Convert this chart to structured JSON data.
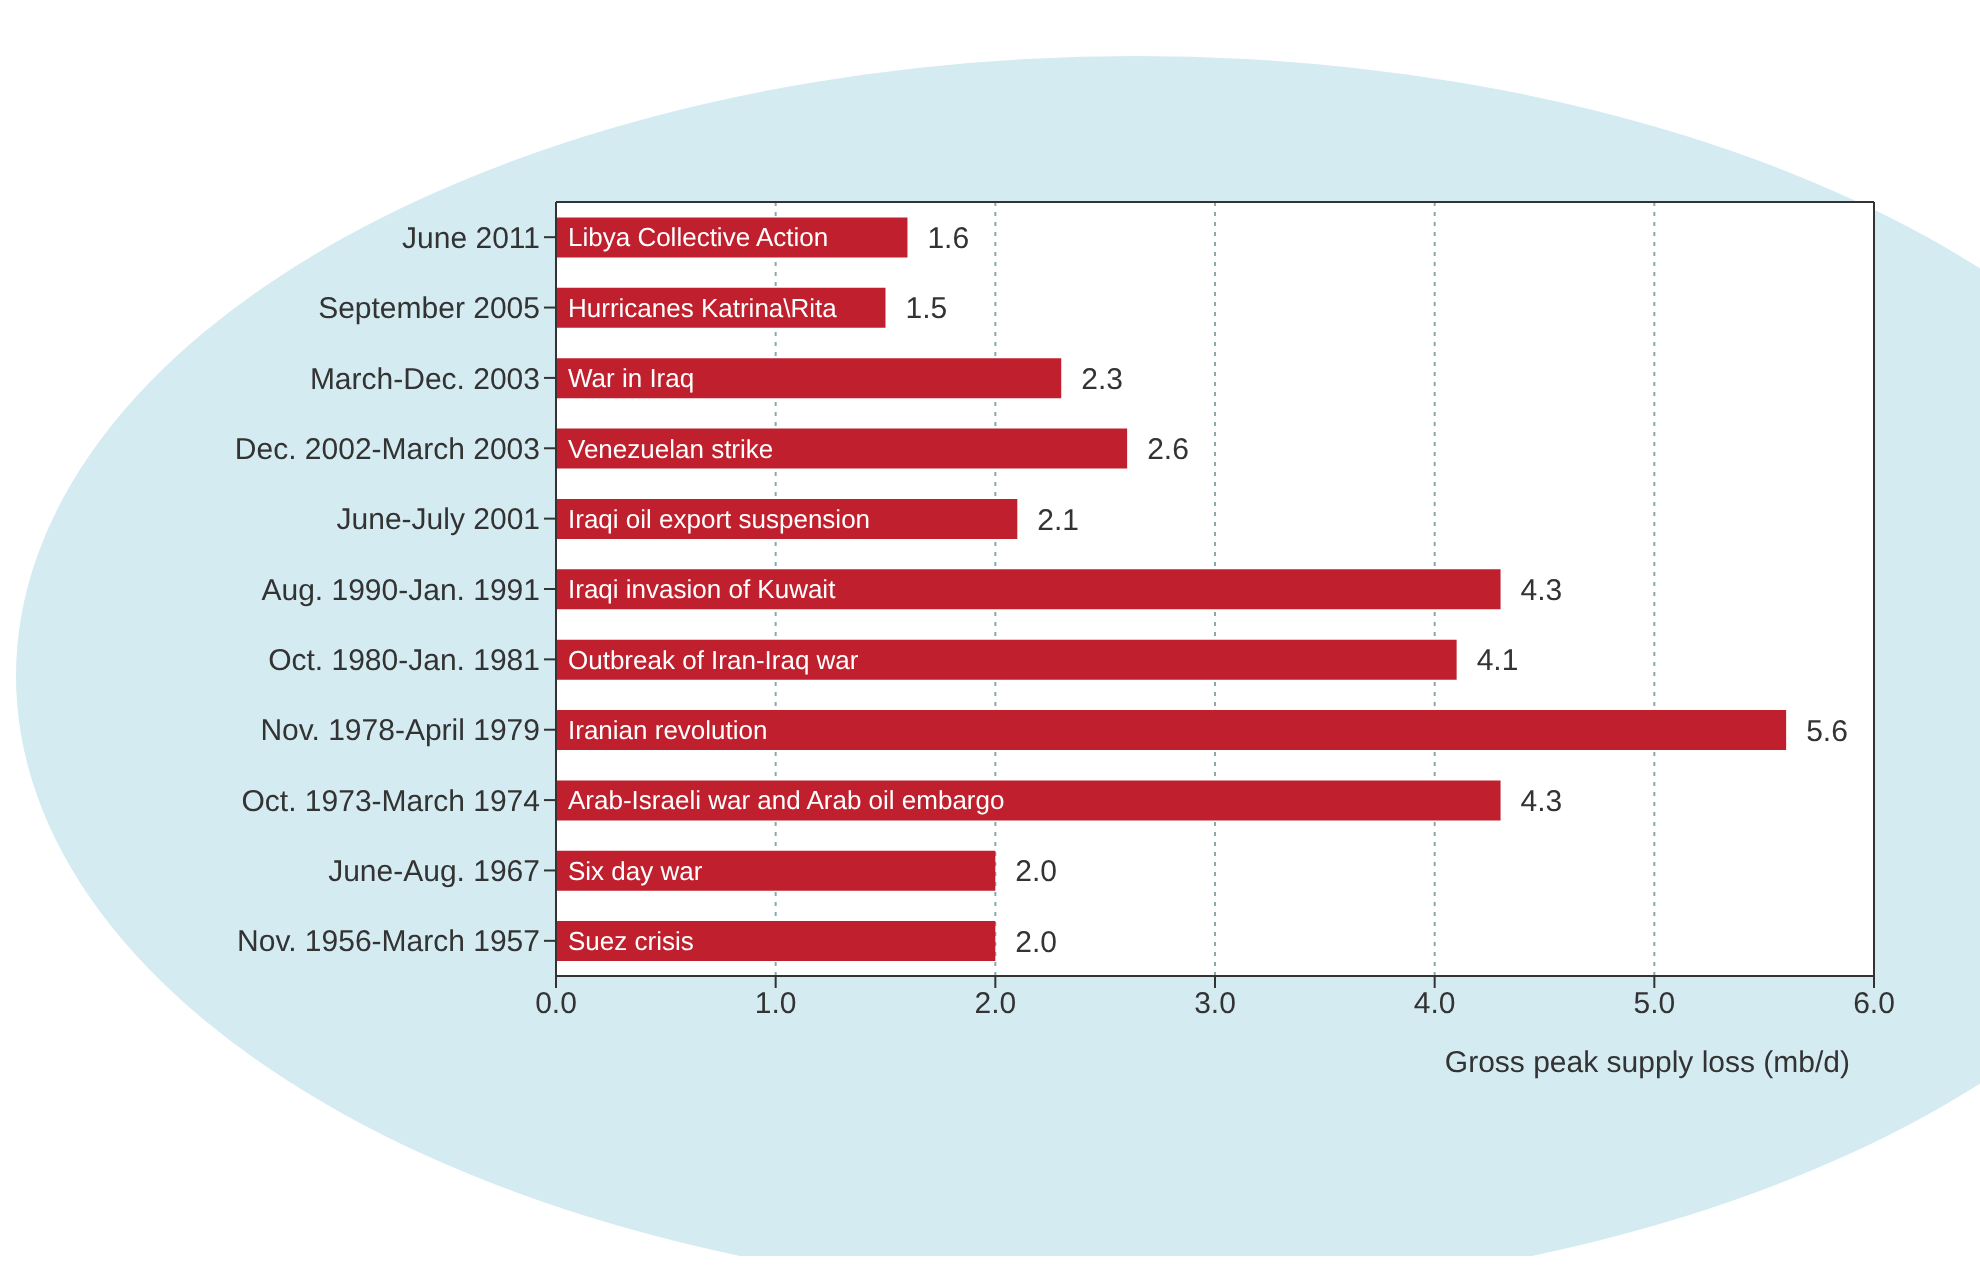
{
  "chart_data": {
    "type": "bar",
    "orientation": "horizontal",
    "xlabel": "Gross peak supply loss (mb/d)",
    "categories": [
      "June 2011",
      "September 2005",
      "March-Dec. 2003",
      "Dec. 2002-March 2003",
      "June-July 2001",
      "Aug. 1990-Jan. 1991",
      "Oct. 1980-Jan. 1981",
      "Nov. 1978-April 1979",
      "Oct. 1973-March 1974",
      "June-Aug. 1967",
      "Nov. 1956-March 1957"
    ],
    "values": [
      1.6,
      1.5,
      2.3,
      2.6,
      2.1,
      4.3,
      4.1,
      5.6,
      4.3,
      2.0,
      2.0
    ],
    "value_labels": [
      "1.6",
      "1.5",
      "2.3",
      "2.6",
      "2.1",
      "4.3",
      "4.1",
      "5.6",
      "4.3",
      "2.0",
      "2.0"
    ],
    "color": "#c0202e",
    "xlim": [
      0,
      6
    ],
    "xticks": [
      {
        "value": 0,
        "label": "0.0"
      },
      {
        "value": 1,
        "label": "1.0"
      },
      {
        "value": 2,
        "label": "2.0"
      },
      {
        "value": 3,
        "label": "3.0"
      },
      {
        "value": 4,
        "label": "4.0"
      },
      {
        "value": 5,
        "label": "5.0"
      },
      {
        "value": 6,
        "label": "6.0"
      }
    ],
    "grid": "x",
    "annotations": [
      "Libya Collective Action",
      "Hurricanes Katrina\\Rita",
      "War in Iraq",
      "Venezuelan strike",
      "Iraqi oil export suspension",
      "Iraqi invasion of Kuwait",
      "Outbreak of Iran-Iraq war",
      "Iranian revolution",
      "Arab-Israeli war and Arab oil embargo",
      "Six day war",
      "Suez crisis"
    ]
  }
}
